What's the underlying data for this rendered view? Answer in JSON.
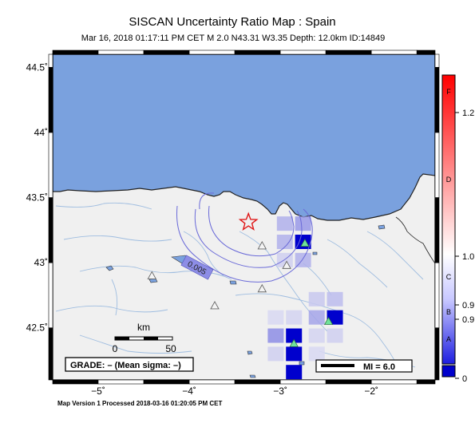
{
  "header": {
    "title": "SISCAN Uncertainty Ratio Map : Spain",
    "subtitle": "Mar 16, 2018 01:17:11 PM CET   M 2.0   N43.31 W3.35   Depth: 12.0km   ID:14849"
  },
  "axes": {
    "lat_ticks": [
      {
        "value": 44.5,
        "label": "44.5˚"
      },
      {
        "value": 44.0,
        "label": "44˚"
      },
      {
        "value": 43.5,
        "label": "43.5˚"
      },
      {
        "value": 43.0,
        "label": "43˚"
      },
      {
        "value": 42.5,
        "label": "42.5˚"
      }
    ],
    "lon_ticks": [
      {
        "value": -5,
        "label": "−5˚"
      },
      {
        "value": -4,
        "label": "−4˚"
      },
      {
        "value": -3,
        "label": "−3˚"
      },
      {
        "value": -2,
        "label": "−2˚"
      }
    ],
    "lon_range": [
      -5.5,
      -1.3
    ],
    "lat_range": [
      42.1,
      44.6
    ]
  },
  "epicenter": {
    "lat": 43.31,
    "lon": -3.35,
    "symbol": "star-icon",
    "color": "#e01818"
  },
  "contour": {
    "label": "0.005",
    "color": "#6a6ad8"
  },
  "stations": {
    "active": [
      {
        "lat": 43.15,
        "lon": -2.73
      },
      {
        "lat": 42.55,
        "lon": -2.47
      },
      {
        "lat": 42.38,
        "lon": -2.85
      }
    ],
    "inactive": [
      {
        "lat": 43.13,
        "lon": -3.2
      },
      {
        "lat": 42.98,
        "lon": -2.93
      },
      {
        "lat": 42.8,
        "lon": -3.2
      },
      {
        "lat": 42.9,
        "lon": -4.41
      },
      {
        "lat": 42.67,
        "lon": -3.72
      }
    ]
  },
  "grid_cells": [
    {
      "lon": -2.95,
      "lat": 43.3,
      "level": 0.25
    },
    {
      "lon": -2.75,
      "lat": 43.3,
      "level": 0.35
    },
    {
      "lon": -2.95,
      "lat": 43.16,
      "level": 0.25
    },
    {
      "lon": -2.75,
      "lat": 43.16,
      "level": 1.0
    },
    {
      "lon": -2.95,
      "lat": 43.02,
      "level": 0.12
    },
    {
      "lon": -2.75,
      "lat": 43.02,
      "level": 0.25
    },
    {
      "lon": -2.6,
      "lat": 42.72,
      "level": 0.15
    },
    {
      "lon": -2.4,
      "lat": 42.72,
      "level": 0.2
    },
    {
      "lon": -2.6,
      "lat": 42.58,
      "level": 0.3
    },
    {
      "lon": -2.4,
      "lat": 42.58,
      "level": 1.0
    },
    {
      "lon": -2.6,
      "lat": 42.44,
      "level": 0.1
    },
    {
      "lon": -2.4,
      "lat": 42.44,
      "level": 0.12
    },
    {
      "lon": -3.05,
      "lat": 42.58,
      "level": 0.08
    },
    {
      "lon": -2.85,
      "lat": 42.58,
      "level": 0.1
    },
    {
      "lon": -3.05,
      "lat": 42.44,
      "level": 0.4
    },
    {
      "lon": -2.85,
      "lat": 42.44,
      "level": 1.0
    },
    {
      "lon": -3.05,
      "lat": 42.3,
      "level": 0.12
    },
    {
      "lon": -2.85,
      "lat": 42.3,
      "level": 1.0
    },
    {
      "lon": -2.85,
      "lat": 42.16,
      "level": 1.0
    },
    {
      "lon": -2.6,
      "lat": 42.3,
      "level": 0.08
    }
  ],
  "scale_bar": {
    "unit": "km",
    "start": "0",
    "end": "50"
  },
  "grade_box": {
    "text": "GRADE: – (Mean sigma: –)"
  },
  "mi_legend": {
    "text": "MI = 6.0"
  },
  "colorbar": {
    "letters": [
      "F",
      "D",
      "C",
      "B",
      "A"
    ],
    "value_labels": [
      "1.2",
      "1.0",
      "0.9",
      "0.9",
      "0"
    ],
    "top_color": "#ff0000",
    "mid_color": "#ffffff",
    "bottom_color": "#0000cc"
  },
  "footer": {
    "text": "Map Version 1 Processed 2018-03-16 01:20:05 PM CET"
  },
  "colors": {
    "sea": "#7aa1de",
    "land": "#f0f0f0",
    "rivers": "#9fbde0",
    "station_active": "#6fe29a"
  }
}
